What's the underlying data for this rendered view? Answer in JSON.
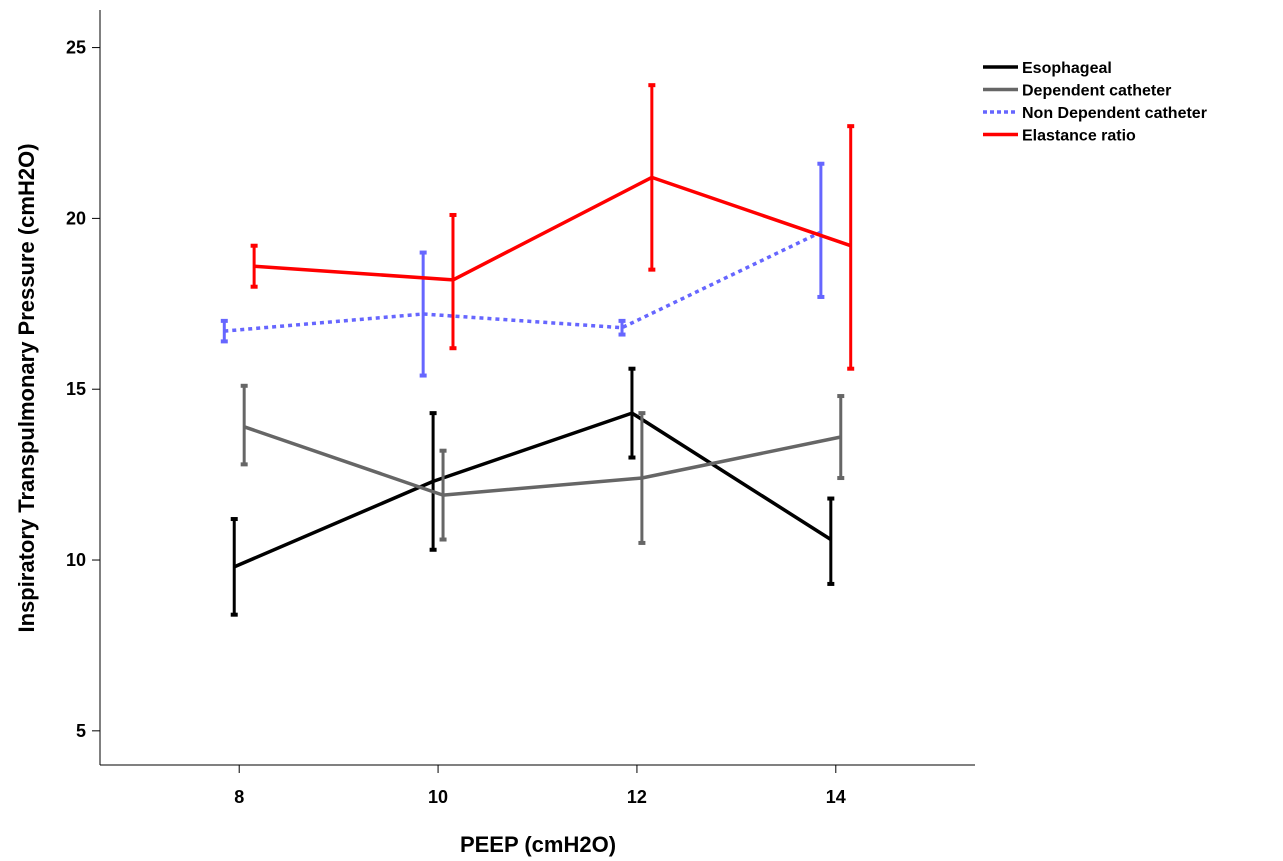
{
  "chart_data": {
    "type": "line",
    "title": "",
    "xlabel": "PEEP (cmH2O)",
    "ylabel": "Inspiratory Transpulmonary Pressure (cmH2O)",
    "x_ticks": [
      8,
      10,
      12,
      14
    ],
    "y_ticks": [
      5,
      10,
      15,
      20,
      25
    ],
    "xlim": [
      6.6,
      15.4
    ],
    "ylim": [
      4,
      26.1
    ],
    "grid": false,
    "legend_position": "top-right",
    "error_bars": true,
    "series": [
      {
        "name": "Esophageal",
        "color": "#000000",
        "dash": "solid",
        "x": [
          7.95,
          9.95,
          11.95,
          13.95
        ],
        "y": [
          9.8,
          12.3,
          14.3,
          10.6
        ],
        "err_low": [
          8.4,
          10.3,
          13.0,
          9.3
        ],
        "err_high": [
          11.2,
          14.3,
          15.6,
          11.8
        ]
      },
      {
        "name": "Dependent catheter",
        "color": "#666666",
        "dash": "solid",
        "x": [
          8.05,
          10.05,
          12.05,
          14.05
        ],
        "y": [
          13.9,
          11.9,
          12.4,
          13.6
        ],
        "err_low": [
          12.8,
          10.6,
          10.5,
          12.4
        ],
        "err_high": [
          15.1,
          13.2,
          14.3,
          14.8
        ]
      },
      {
        "name": "Non Dependent catheter",
        "color": "#6666ff",
        "dash": "dotted",
        "x": [
          7.85,
          9.85,
          11.85,
          13.85
        ],
        "y": [
          16.7,
          17.2,
          16.8,
          19.6
        ],
        "err_low": [
          16.4,
          15.4,
          16.6,
          17.7
        ],
        "err_high": [
          17.0,
          19.0,
          17.0,
          21.6
        ]
      },
      {
        "name": "Elastance ratio",
        "color": "#ff0000",
        "dash": "solid",
        "x": [
          8.15,
          10.15,
          12.15,
          14.15
        ],
        "y": [
          18.6,
          18.2,
          21.2,
          19.2
        ],
        "err_low": [
          18.0,
          16.2,
          18.5,
          15.6
        ],
        "err_high": [
          19.2,
          20.1,
          23.9,
          22.7
        ]
      }
    ]
  }
}
